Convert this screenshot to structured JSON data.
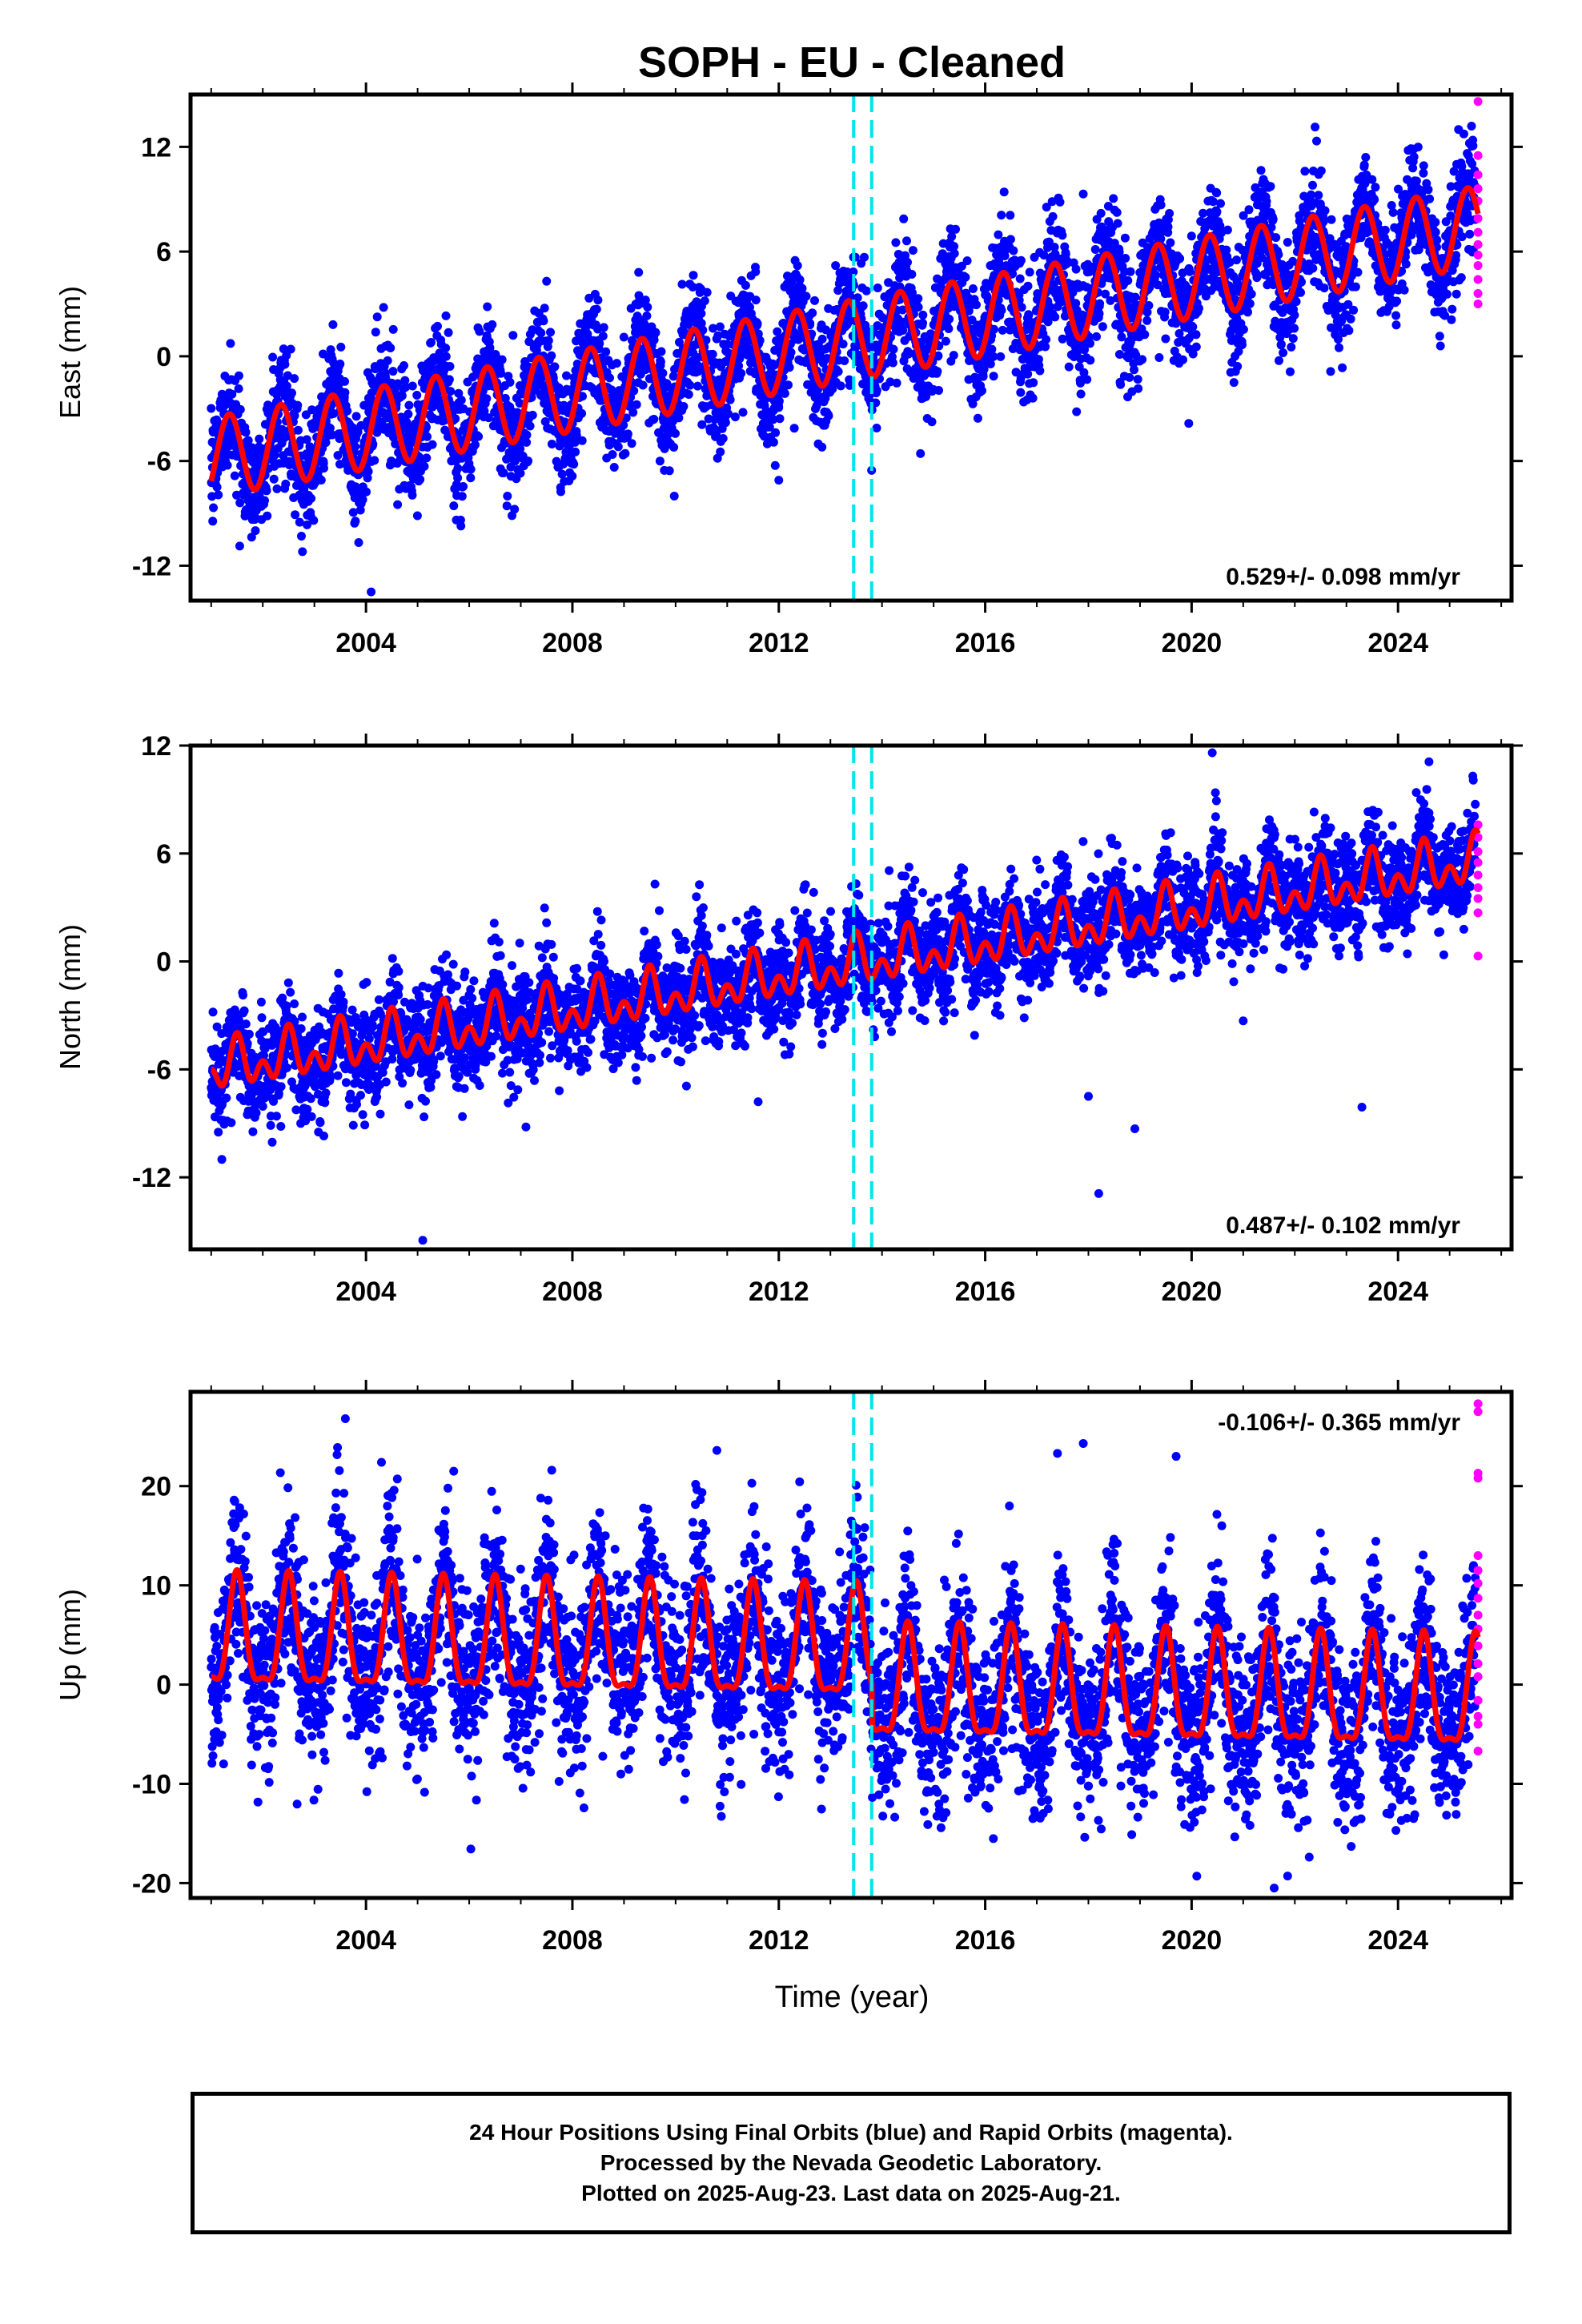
{
  "title": "SOPH  - EU - Cleaned",
  "xlabel": "Time (year)",
  "colors": {
    "final": "#0000ff",
    "rapid": "#ff00ff",
    "model": "#ff0000",
    "step": "#00e5ee"
  },
  "footer": {
    "line1": "24 Hour Positions Using Final Orbits (blue) and Rapid Orbits (magenta).",
    "line2": "Processed by the Nevada Geodetic Laboratory.",
    "line3": "Plotted on 2025-Aug-23. Last data on 2025-Aug-21."
  },
  "chart_data": [
    {
      "type": "scatter",
      "component": "East",
      "ylabel": "East (mm)",
      "xlim": [
        2000.6,
        2026.2
      ],
      "ylim": [
        -14,
        15
      ],
      "xticks": [
        2004,
        2008,
        2012,
        2016,
        2020,
        2024
      ],
      "yticks": [
        -12,
        -6,
        0,
        6,
        12
      ],
      "rate_label": "0.529+/- 0.098 mm/yr",
      "rate_position": "bottom-right",
      "step_lines": [
        2013.45,
        2013.8
      ],
      "model": {
        "intercept_2001": -5.8,
        "rate": 0.54,
        "annual_amp": 2.3,
        "semiannual_amp": 0.0,
        "phase_peak": 0.35
      },
      "scatter_std": 1.5,
      "outliers": [
        [
          2004.1,
          -13.5
        ],
        [
          2012.0,
          -7.1
        ],
        [
          2017.9,
          9.3
        ],
        [
          2013.1,
          5.2
        ],
        [
          2007.5,
          4.3
        ]
      ],
      "rapid_points": [
        [
          2025.55,
          14.6
        ],
        [
          2025.55,
          11.5
        ],
        [
          2025.55,
          10.4
        ],
        [
          2025.55,
          9.6
        ],
        [
          2025.55,
          8.9
        ],
        [
          2025.55,
          7.9
        ],
        [
          2025.55,
          7.1
        ],
        [
          2025.55,
          6.4
        ],
        [
          2025.55,
          5.8
        ],
        [
          2025.55,
          5.2
        ],
        [
          2025.55,
          4.4
        ],
        [
          2025.55,
          3.6
        ],
        [
          2025.55,
          3.0
        ]
      ]
    },
    {
      "type": "scatter",
      "component": "North",
      "ylabel": "North (mm)",
      "xlim": [
        2000.6,
        2026.2
      ],
      "ylim": [
        -16,
        12
      ],
      "xticks": [
        2004,
        2008,
        2012,
        2016,
        2020,
        2024
      ],
      "yticks": [
        -12,
        -6,
        0,
        6,
        12
      ],
      "rate_label": "0.487+/- 0.102 mm/yr",
      "rate_position": "bottom-right",
      "step_lines": [
        2013.45,
        2013.8
      ],
      "model": {
        "intercept_2001": -6.0,
        "rate": 0.47,
        "annual_amp": 0.9,
        "semiannual_amp": 0.9,
        "phase_peak": 0.5
      },
      "scatter_std": 1.3,
      "outliers": [
        [
          2005.1,
          -15.5
        ],
        [
          2009.6,
          4.3
        ],
        [
          2011.6,
          -7.8
        ],
        [
          2007.1,
          -9.2
        ],
        [
          2018.0,
          -7.5
        ],
        [
          2018.2,
          -12.9
        ],
        [
          2018.9,
          -9.3
        ],
        [
          2020.4,
          11.6
        ],
        [
          2023.3,
          -8.1
        ],
        [
          2021.0,
          -3.3
        ],
        [
          2024.6,
          11.1
        ]
      ],
      "rapid_points": [
        [
          2025.55,
          7.6
        ],
        [
          2025.55,
          6.9
        ],
        [
          2025.55,
          6.1
        ],
        [
          2025.55,
          5.5
        ],
        [
          2025.55,
          4.8
        ],
        [
          2025.55,
          4.1
        ],
        [
          2025.55,
          3.5
        ],
        [
          2025.55,
          2.7
        ],
        [
          2025.55,
          0.3
        ]
      ]
    },
    {
      "type": "scatter",
      "component": "Up",
      "ylabel": "Up (mm)",
      "xlim": [
        2000.6,
        2026.2
      ],
      "ylim": [
        -21.5,
        29.5
      ],
      "xticks": [
        2004,
        2008,
        2012,
        2016,
        2020,
        2024
      ],
      "yticks": [
        -20,
        -10,
        0,
        10,
        20
      ],
      "rate_label": "-0.106+/- 0.365 mm/yr",
      "rate_position": "top-right",
      "step_lines": [
        2013.45,
        2013.8
      ],
      "model": {
        "intercept_2001": 4.4,
        "rate": -0.09,
        "annual_amp": 5.4,
        "semiannual_amp": 1.8,
        "phase_peak": 0.5,
        "offset_at_step": -4.0
      },
      "scatter_std": 4.0,
      "outliers": [
        [
          2003.6,
          26.8
        ],
        [
          2004.3,
          22.4
        ],
        [
          2010.8,
          23.6
        ],
        [
          2017.4,
          23.3
        ],
        [
          2017.9,
          24.3
        ],
        [
          2019.7,
          23.0
        ],
        [
          2021.6,
          -20.5
        ],
        [
          2020.1,
          -19.3
        ],
        [
          2005.7,
          21.5
        ],
        [
          2007.6,
          21.6
        ]
      ],
      "rapid_points": [
        [
          2025.55,
          28.3
        ],
        [
          2025.55,
          27.5
        ],
        [
          2025.55,
          21.3
        ],
        [
          2025.55,
          20.8
        ],
        [
          2025.55,
          13.0
        ],
        [
          2025.55,
          11.5
        ],
        [
          2025.55,
          10.2
        ],
        [
          2025.55,
          8.7
        ],
        [
          2025.55,
          7.0
        ],
        [
          2025.55,
          5.6
        ],
        [
          2025.55,
          3.9
        ],
        [
          2025.55,
          2.1
        ],
        [
          2025.55,
          0.8
        ],
        [
          2025.55,
          -1.6
        ],
        [
          2025.55,
          -3.2
        ],
        [
          2025.55,
          -4.0
        ],
        [
          2025.55,
          -6.7
        ]
      ]
    }
  ]
}
